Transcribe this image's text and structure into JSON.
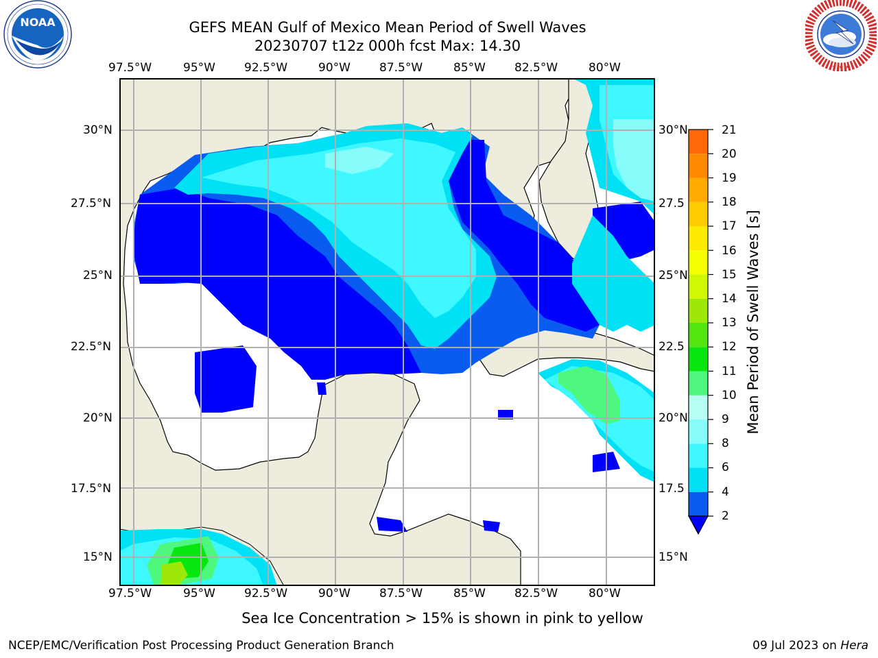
{
  "title": {
    "line1": "GEFS MEAN Gulf of Mexico Mean Period of Swell Waves",
    "line2": "20230707 t12z 000h fcst   Max: 14.30"
  },
  "logos": {
    "left": {
      "name": "noaa-logo",
      "text": "NOAA",
      "ring_text": "NATIONAL OCEANIC AND ATMOSPHERIC ADMINISTRATION · U.S. DEPARTMENT OF COMMERCE"
    },
    "right": {
      "name": "nws-logo",
      "ring_text": "NATIONAL WEATHER SERVICE"
    }
  },
  "map": {
    "lon_labels": [
      "97.5°W",
      "95°W",
      "92.5°W",
      "90°W",
      "87.5°W",
      "85°W",
      "82.5°W",
      "80°W"
    ],
    "lat_labels_left": [
      "30°N",
      "27.5°N",
      "25°N",
      "22.5°N",
      "20°N",
      "17.5°N",
      "15°N"
    ],
    "lat_labels_right": [
      "30°N",
      "27.5",
      "25°N",
      "22.5",
      "20°N",
      "17.5",
      "15°N"
    ],
    "lon_range": [
      -98,
      -78.3
    ],
    "lat_range": [
      14,
      31.8
    ],
    "land_color": "#eeeddd",
    "ocean_no_data_color": "#ffffff",
    "grid_color": "#b0b0b0"
  },
  "colorbar": {
    "label": "Mean Period of Swell Waves [s]",
    "ticks": [
      "2",
      "4",
      "6",
      "8",
      "9",
      "10",
      "11",
      "12",
      "13",
      "14",
      "15",
      "16",
      "17",
      "18",
      "19",
      "20",
      "21"
    ],
    "colors": [
      "#0a5cf0",
      "#00e1f5",
      "#3ff7ff",
      "#86fdfb",
      "#b7fff2",
      "#4ef87e",
      "#08e610",
      "#52e510",
      "#9ee809",
      "#d0f705",
      "#f4ff01",
      "#ffea02",
      "#ffcc01",
      "#ffab02",
      "#ff8a02",
      "#ff6804",
      "#ff3d04",
      "#ff0803"
    ],
    "extend_color": "#0000ff"
  },
  "sea_ice_note": "Sea Ice Concentration > 15% is shown in pink to yellow",
  "footer": {
    "left": "NCEP/EMC/Verification Post Processing Product Generation Branch",
    "right_date": "09 Jul 2023 on ",
    "right_host": "Hera"
  }
}
